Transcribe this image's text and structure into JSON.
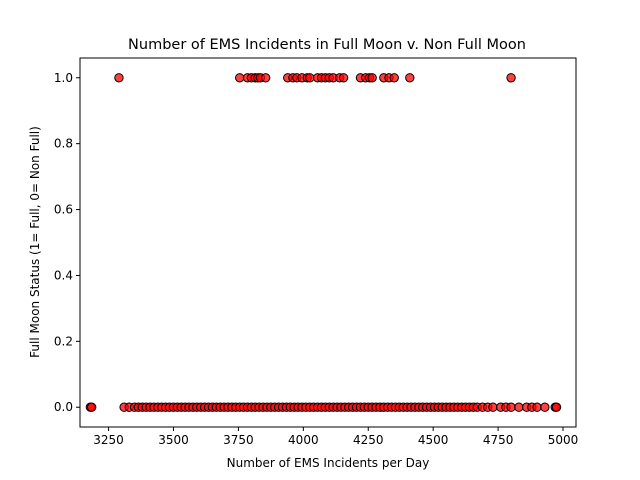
{
  "chart_data": {
    "type": "scatter",
    "title": "Number of EMS Incidents in Full Moon v. Non Full Moon",
    "xlabel": "Number of EMS Incidents per Day",
    "ylabel": "Full Moon Status (1= Full, 0= Non Full)",
    "xlim": [
      3140,
      5050
    ],
    "ylim": [
      -0.06,
      1.06
    ],
    "xticks": [
      3250,
      3500,
      3750,
      4000,
      4250,
      4500,
      4750,
      5000
    ],
    "xtick_labels": [
      "3250",
      "3500",
      "3750",
      "4000",
      "4250",
      "4500",
      "4750",
      "5000"
    ],
    "yticks": [
      0.0,
      0.2,
      0.4,
      0.6,
      0.8,
      1.0
    ],
    "ytick_labels": [
      "0.0",
      "0.2",
      "0.4",
      "0.6",
      "0.8",
      "1.0"
    ],
    "grid": false,
    "marker_color": "#ff0000",
    "marker_edge_color": "#000000",
    "full_moon_x": [
      3290,
      3755,
      3785,
      3800,
      3815,
      3825,
      3835,
      3855,
      3940,
      3960,
      3975,
      3995,
      4015,
      4025,
      4055,
      4070,
      4085,
      4100,
      4115,
      4140,
      4155,
      4220,
      4240,
      4255,
      4265,
      4310,
      4330,
      4350,
      4410,
      4800
    ],
    "non_full_moon_x": [
      3180,
      3185,
      3310,
      3330,
      3350,
      3365,
      3380,
      3395,
      3410,
      3425,
      3440,
      3455,
      3470,
      3485,
      3500,
      3515,
      3530,
      3545,
      3560,
      3575,
      3590,
      3605,
      3620,
      3635,
      3650,
      3665,
      3680,
      3695,
      3710,
      3725,
      3740,
      3755,
      3770,
      3785,
      3800,
      3815,
      3830,
      3845,
      3860,
      3875,
      3890,
      3905,
      3920,
      3935,
      3950,
      3965,
      3980,
      3995,
      4010,
      4025,
      4040,
      4055,
      4070,
      4085,
      4100,
      4115,
      4130,
      4145,
      4160,
      4175,
      4190,
      4205,
      4220,
      4235,
      4250,
      4265,
      4280,
      4295,
      4310,
      4325,
      4340,
      4355,
      4370,
      4385,
      4400,
      4415,
      4430,
      4445,
      4460,
      4475,
      4490,
      4505,
      4520,
      4535,
      4550,
      4565,
      4580,
      4595,
      4610,
      4625,
      4640,
      4655,
      4670,
      4690,
      4710,
      4730,
      4760,
      4780,
      4800,
      4830,
      4860,
      4880,
      4900,
      4930,
      4970,
      4975
    ]
  }
}
